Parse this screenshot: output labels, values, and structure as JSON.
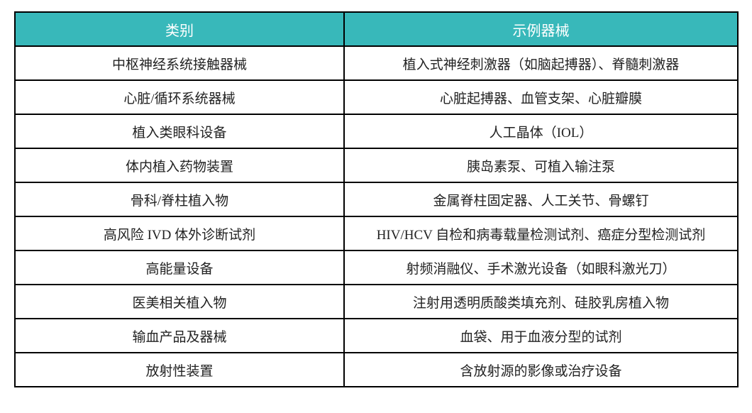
{
  "colors": {
    "header_bg": "#38B8BA",
    "header_text": "#FFFFFF",
    "border": "#000000"
  },
  "table": {
    "headers": [
      "类别",
      "示例器械"
    ],
    "rows": [
      [
        "中枢神经系统接触器械",
        "植入式神经刺激器（如脑起搏器）、脊髓刺激器"
      ],
      [
        "心脏/循环系统器械",
        "心脏起搏器、血管支架、心脏瓣膜"
      ],
      [
        "植入类眼科设备",
        "人工晶体（IOL）"
      ],
      [
        "体内植入药物装置",
        "胰岛素泵、可植入输注泵"
      ],
      [
        "骨科/脊柱植入物",
        "金属脊柱固定器、人工关节、骨螺钉"
      ],
      [
        "高风险 IVD 体外诊断试剂",
        "HIV/HCV 自检和病毒载量检测试剂、癌症分型检测试剂"
      ],
      [
        "高能量设备",
        "射频消融仪、手术激光设备（如眼科激光刀）"
      ],
      [
        "医美相关植入物",
        "注射用透明质酸类填充剂、硅胶乳房植入物"
      ],
      [
        "输血产品及器械",
        "血袋、用于血液分型的试剂"
      ],
      [
        "放射性装置",
        "含放射源的影像或治疗设备"
      ]
    ]
  }
}
